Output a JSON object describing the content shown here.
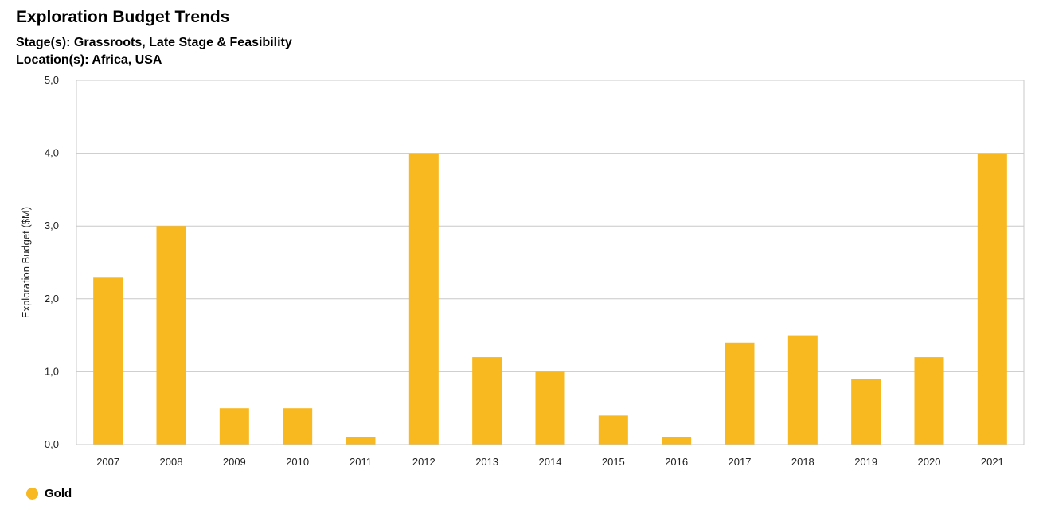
{
  "header": {
    "title": "Exploration Budget Trends",
    "stages": "Stage(s): Grassroots, Late Stage & Feasibility",
    "locations": "Location(s): Africa, USA"
  },
  "colors": {
    "bar": "#F8B81F",
    "grid": "#C8C8C8",
    "frame": "#C8C8C8"
  },
  "chart_data": {
    "type": "bar",
    "title": "Exploration Budget Trends",
    "xlabel": "",
    "ylabel": "Exploration Budget ($M)",
    "ylim": [
      0,
      5
    ],
    "yticks": [
      0,
      1,
      2,
      3,
      4,
      5
    ],
    "ytick_labels": [
      "0,0",
      "1,0",
      "2,0",
      "3,0",
      "4,0",
      "5,0"
    ],
    "grid": true,
    "legend": "bottom-left",
    "categories": [
      "2007",
      "2008",
      "2009",
      "2010",
      "2011",
      "2012",
      "2013",
      "2014",
      "2015",
      "2016",
      "2017",
      "2018",
      "2019",
      "2020",
      "2021"
    ],
    "series": [
      {
        "name": "Gold",
        "values": [
          2.3,
          3.0,
          0.5,
          0.5,
          0.1,
          4.0,
          1.2,
          1.0,
          0.4,
          0.1,
          1.4,
          1.5,
          0.9,
          1.2,
          4.0
        ]
      }
    ]
  }
}
